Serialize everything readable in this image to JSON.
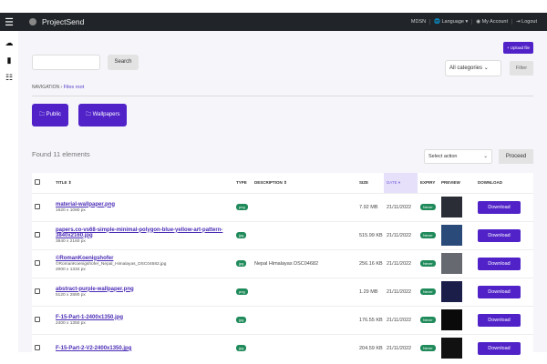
{
  "header": {
    "brand": "ProjectSend",
    "user": "MDSN",
    "language": "Language ▾",
    "account": "My Account",
    "logout": "Logout"
  },
  "toolbar": {
    "search_placeholder": "",
    "search_label": "Search",
    "upload_label": "+ Upload file",
    "category": "All categories",
    "filter_label": "Filter"
  },
  "breadcrumb": {
    "root": "NAVIGATION",
    "current": "Files root"
  },
  "folders": [
    "Public",
    "Wallpapers"
  ],
  "found": "Found 11 elements",
  "bulk": {
    "action": "Select action",
    "proceed": "Proceed"
  },
  "columns": {
    "title": "TITLE ⇕",
    "type": "TYPE",
    "description": "DESCRIPTION ⇕",
    "size": "SIZE",
    "date": "DATE ▾",
    "expiry": "EXPIRY",
    "preview": "PREVIEW",
    "download": "DOWNLOAD"
  },
  "rows": [
    {
      "title": "material-wallpaper.png",
      "file": "",
      "dims": "1920 x 1080 px",
      "type": "png",
      "description": "",
      "size": "7.92 MB",
      "date": "21/11/2022",
      "expiry": "Never",
      "download": "Download",
      "thumb": "#2a2d35"
    },
    {
      "title": "papers.co-vs68-simple-minimal-polygon-blue-yellow-art-pattern-3840x2160.jpg",
      "file": "",
      "dims": "3840 x 2160 px",
      "type": "jpg",
      "description": "",
      "size": "515.99 KB",
      "date": "21/11/2022",
      "expiry": "Never",
      "download": "Download",
      "thumb": "#2a4a7a"
    },
    {
      "title": "©RomanKoenigshofer",
      "file": "©RomanKoenigshofer_Nepal_Himalayas_DSC04682.jpg",
      "dims": "2000 x 1334 px",
      "type": "jpg",
      "description": "Nepal Himalayas DSC04682",
      "size": "256.16 KB",
      "date": "21/11/2022",
      "expiry": "Never",
      "download": "Download",
      "thumb": "#666a70"
    },
    {
      "title": "abstract-purple-wallpaper.png",
      "file": "",
      "dims": "5120 x 2880 px",
      "type": "png",
      "description": "",
      "size": "1.29 MB",
      "date": "21/11/2022",
      "expiry": "Never",
      "download": "Download",
      "thumb": "#1c1e4a"
    },
    {
      "title": "F-15-Part-1-2400x1350.jpg",
      "file": "",
      "dims": "2400 x 1350 px",
      "type": "jpg",
      "description": "",
      "size": "176.55 KB",
      "date": "21/11/2022",
      "expiry": "Never",
      "download": "Download",
      "thumb": "#0a0a0a"
    },
    {
      "title": "F-15-Part-2-V2-2400x1350.jpg",
      "file": "",
      "dims": "",
      "type": "jpg",
      "description": "",
      "size": "204.59 KB",
      "date": "21/11/2022",
      "expiry": "Never",
      "download": "Download",
      "thumb": "#111"
    }
  ]
}
